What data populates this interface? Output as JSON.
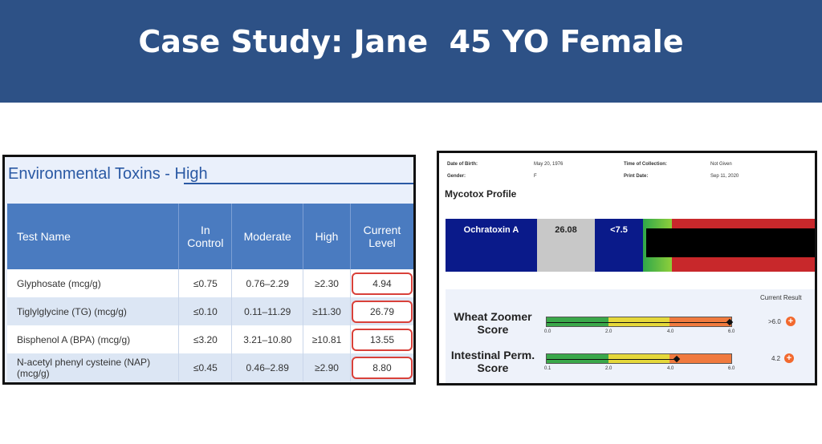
{
  "title": "Case Study: Jane  45 YO Female",
  "env": {
    "title": "Environmental Toxins - High",
    "headers": [
      "Test Name",
      "In Control",
      "Moderate",
      "High",
      "Current Level"
    ],
    "rows": [
      {
        "name": "Glyphosate (mcg/g)",
        "in_control": "≤0.75",
        "moderate": "0.76–2.29",
        "high": "≥2.30",
        "current": "4.94"
      },
      {
        "name": "Tiglylglycine (TG) (mcg/g)",
        "in_control": "≤0.10",
        "moderate": "0.11–11.29",
        "high": "≥11.30",
        "current": "26.79"
      },
      {
        "name": "Bisphenol A (BPA) (mcg/g)",
        "in_control": "≤3.20",
        "moderate": "3.21–10.80",
        "high": "≥10.81",
        "current": "13.55"
      },
      {
        "name": "N-acetyl phenyl cysteine (NAP) (mcg/g)",
        "in_control": "≤0.45",
        "moderate": "0.46–2.89",
        "high": "≥2.90",
        "current": "8.80"
      }
    ]
  },
  "report": {
    "dob_label": "Date of Birth:",
    "dob": "May 20, 1976",
    "gender_label": "Gender:",
    "gender": "F",
    "toc_label": "Time of Collection:",
    "toc": "Not Given",
    "print_label": "Print Date:",
    "print_date": "Sep 11, 2020",
    "mycotox_title": "Mycotox Profile",
    "ochratoxin": {
      "name": "Ochratoxin A",
      "value": "26.08",
      "ref": "<7.5"
    },
    "current_result_label": "Current Result",
    "scores": [
      {
        "label_line1": "Wheat Zoomer",
        "label_line2": "Score",
        "ticks": [
          "0.0",
          "2.0",
          "4.0",
          "6.0"
        ],
        "value": 6.0,
        "result": ">6.0"
      },
      {
        "label_line1": "Intestinal Perm.",
        "label_line2": "Score",
        "ticks": [
          "0.1",
          "2.0",
          "4.0",
          "6.0"
        ],
        "value": 4.2,
        "result": "4.2"
      }
    ],
    "plus_icon": "+"
  },
  "colors": {
    "banner": "#2d5186",
    "gauge_green": "#3aa84a",
    "gauge_yellow": "#e5d83a",
    "gauge_orange": "#f07a3e",
    "result_icon": "#f2692e"
  }
}
